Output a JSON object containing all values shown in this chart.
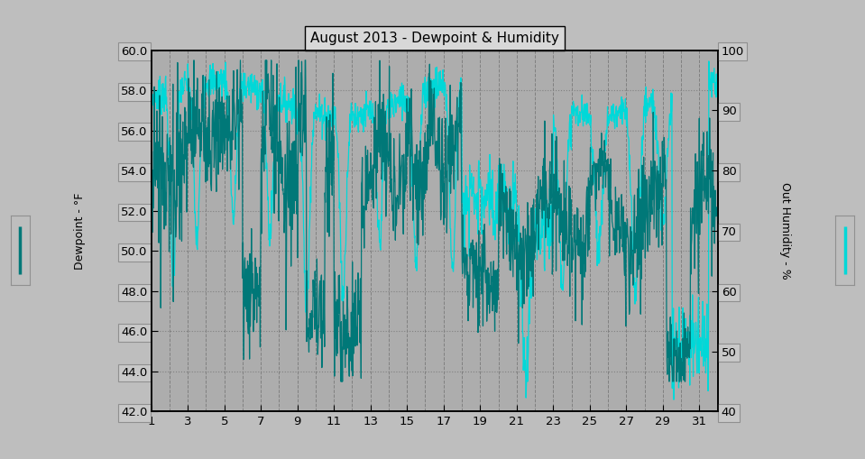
{
  "title": "August 2013 - Dewpoint & Humidity",
  "xlabel_ticks": [
    1,
    3,
    5,
    7,
    9,
    11,
    13,
    15,
    17,
    19,
    21,
    23,
    25,
    27,
    29,
    31
  ],
  "yleft_min": 42.0,
  "yleft_max": 60.0,
  "yleft_ticks": [
    42.0,
    44.0,
    46.0,
    48.0,
    50.0,
    52.0,
    54.0,
    56.0,
    58.0,
    60.0
  ],
  "yright_min": 40,
  "yright_max": 100,
  "yright_ticks": [
    40,
    50,
    60,
    70,
    80,
    90,
    100
  ],
  "bg_color": "#bebebe",
  "plot_bg_color": "#adadad",
  "dewpoint_color": "#007878",
  "humidity_color": "#00d8d8",
  "grid_color": "#808080",
  "title_box_color": "#d8d8d8",
  "tick_box_color": "#c8c8c8",
  "n_points": 1488,
  "days": 31,
  "seed": 7
}
